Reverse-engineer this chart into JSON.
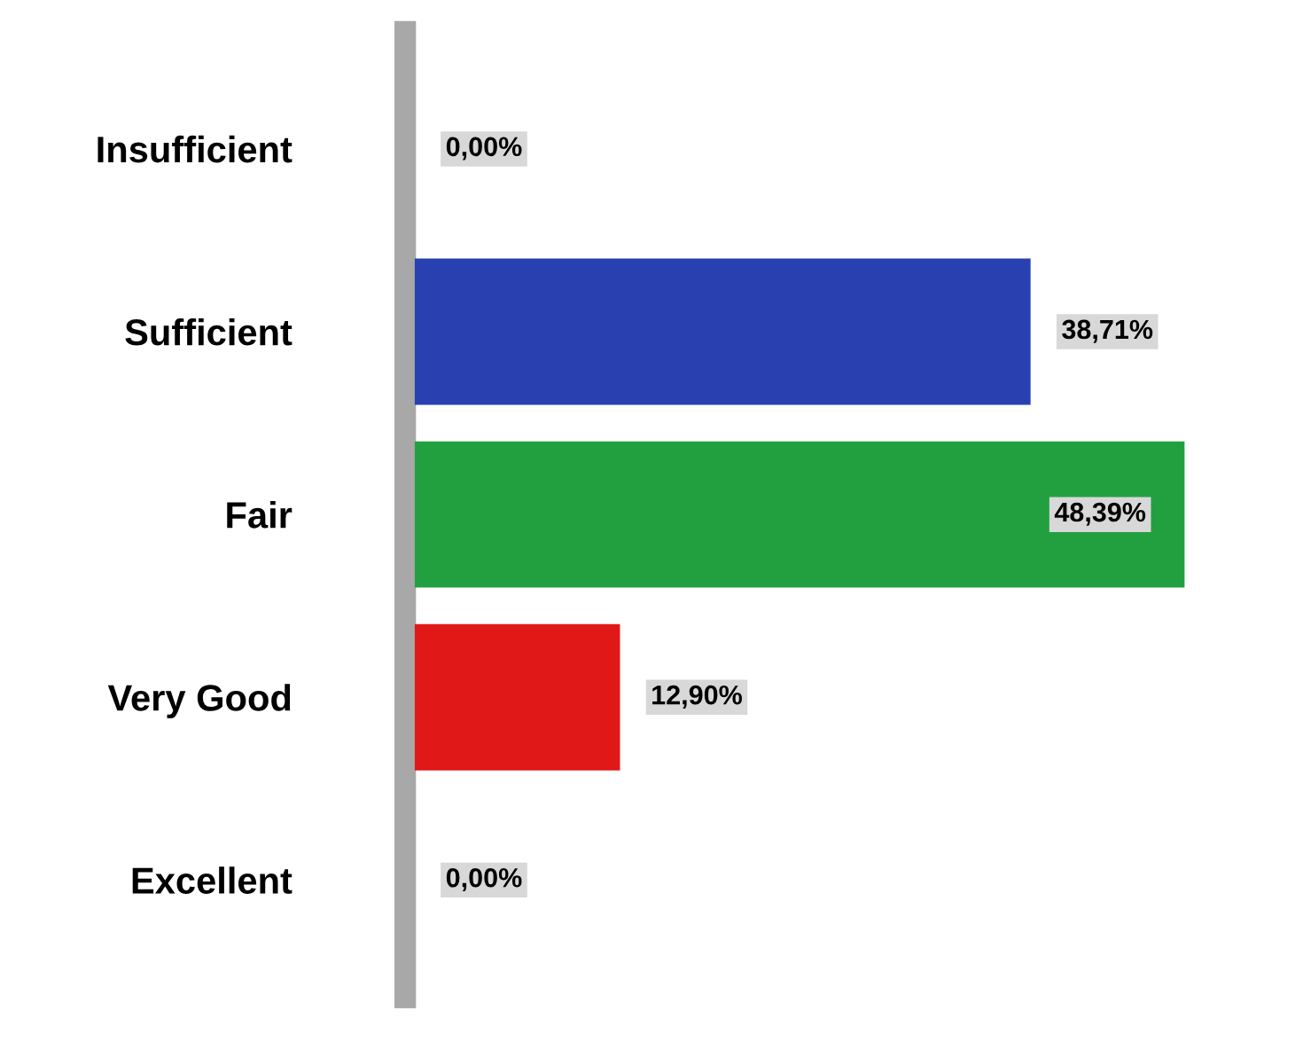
{
  "chart_data": {
    "type": "bar",
    "orientation": "horizontal",
    "categories": [
      "Insufficient",
      "Sufficient",
      "Fair",
      "Very Good",
      "Excellent"
    ],
    "values": [
      0,
      38.71,
      48.39,
      12.9,
      0
    ],
    "colors": [
      "#1a1a1a",
      "#2840b0",
      "#22a040",
      "#e01818",
      "#c09020"
    ],
    "value_labels": [
      "0,00%",
      "38,71%",
      "48,39%",
      "12,90%",
      "0,00%"
    ],
    "tick_labels": "y"
  }
}
